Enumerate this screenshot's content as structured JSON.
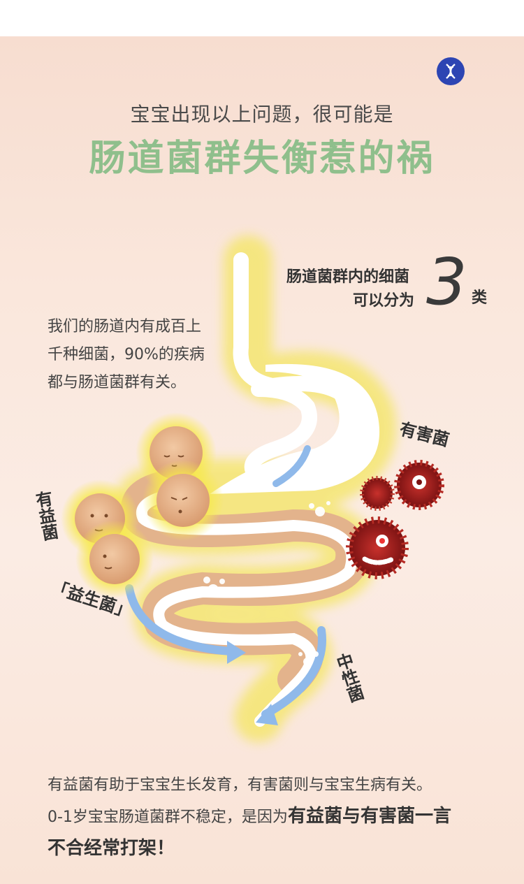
{
  "header": {
    "subtitle": "宝宝出现以上问题，很可能是",
    "title": "肠道菌群失衡惹的祸",
    "logo_icon": "dna-icon"
  },
  "categories": {
    "line1": "肠道菌群内的细菌",
    "line2": "可以分为",
    "number": "3",
    "unit": "类"
  },
  "description": {
    "line1": "我们的肠道内有成百上",
    "line2": "千种细菌，90%的疾病",
    "line3": "都与肠道菌群有关。"
  },
  "labels": {
    "beneficial": "有益菌",
    "probiotic": "「益生菌」",
    "harmful": "有害菌",
    "neutral": "中性菌"
  },
  "bottom": {
    "line1": "有益菌有助于宝宝生长发育，有害菌则与宝宝生病有关。",
    "line2_plain": "0-1岁宝宝肠道菌群不稳定，是因为",
    "line2_bold": "有益菌与有害菌一言",
    "line3_bold": "不合经常打架！"
  },
  "colors": {
    "title_green": "#8fbf8c",
    "logo_blue": "#2d45b3",
    "harmful_red": "#a51f1f",
    "neutral_blue": "#7fb0e8",
    "good_bacteria": "#e8b58e"
  }
}
